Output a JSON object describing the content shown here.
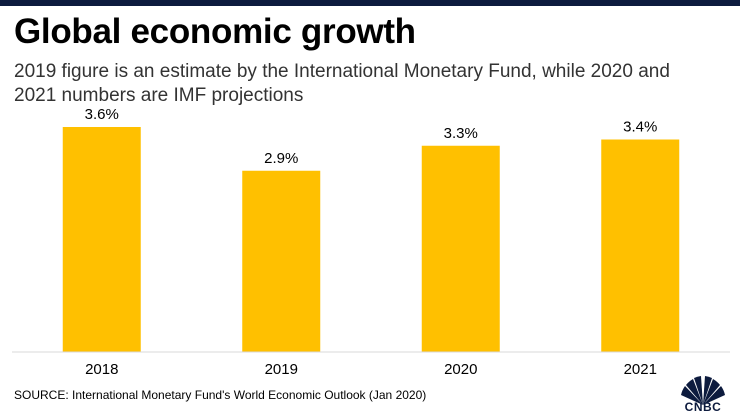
{
  "header": {
    "title": "Global economic growth",
    "subtitle": "2019 figure is an estimate by the International Monetary Fund, while 2020 and 2021 numbers are IMF projections"
  },
  "chart_data": {
    "type": "bar",
    "title": "Global economic growth",
    "subtitle": "2019 figure is an estimate by the International Monetary Fund, while 2020 and 2021 numbers are IMF projections",
    "categories": [
      "2018",
      "2019",
      "2020",
      "2021"
    ],
    "values": [
      3.6,
      2.9,
      3.3,
      3.4
    ],
    "data_labels": [
      "3.6%",
      "2.9%",
      "3.3%",
      "3.4%"
    ],
    "xlabel": "",
    "ylabel": "",
    "ylim": [
      0,
      4
    ],
    "grid": false,
    "legend": "none",
    "bar_color": "#ffc000"
  },
  "footer": {
    "source": "SOURCE: International Monetary Fund's World Economic Outlook (Jan 2020)",
    "logo_text": "CNBC",
    "logo_icon": "peacock-icon"
  },
  "colors": {
    "bar": "#ffc000",
    "axis": "#d9d9d9",
    "brand": "#0d1b3e"
  }
}
